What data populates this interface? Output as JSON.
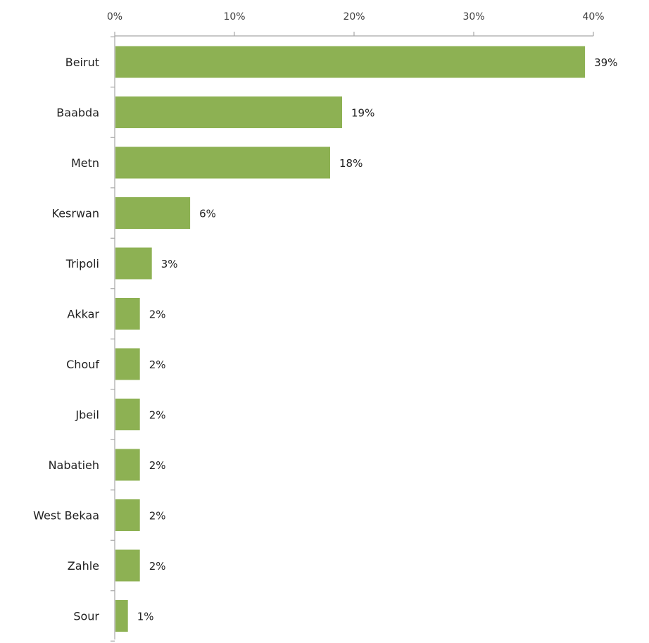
{
  "chart_data": {
    "type": "bar",
    "orientation": "horizontal",
    "x_axis_position": "top",
    "categories": [
      "Beirut",
      "Baabda",
      "Metn",
      "Kesrwan",
      "Tripoli",
      "Akkar",
      "Chouf",
      "Jbeil",
      "Nabatieh",
      "West Bekaa",
      "Zahle",
      "Sour"
    ],
    "values": [
      39,
      19,
      18,
      6,
      3,
      2,
      2,
      2,
      2,
      2,
      2,
      1
    ],
    "bar_values": [
      39.3,
      19.0,
      18.0,
      6.3,
      3.1,
      2.1,
      2.1,
      2.1,
      2.1,
      2.1,
      2.1,
      1.1
    ],
    "data_labels": [
      "39%",
      "19%",
      "18%",
      "6%",
      "3%",
      "2%",
      "2%",
      "2%",
      "2%",
      "2%",
      "2%",
      "1%"
    ],
    "xlim": [
      0,
      40
    ],
    "x_ticks": [
      0,
      10,
      20,
      30,
      40
    ],
    "x_tick_labels": [
      "0%",
      "10%",
      "20%",
      "30%",
      "40%"
    ],
    "grid": false,
    "legend": "none",
    "title": "",
    "xlabel": "",
    "ylabel": "",
    "colors": {
      "bar": "#8db153",
      "axis": "#a6a6a6"
    }
  }
}
